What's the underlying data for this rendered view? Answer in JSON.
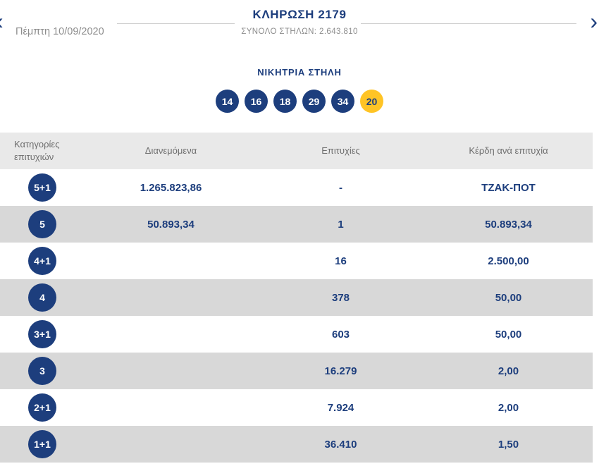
{
  "header": {
    "title": "ΚΛΗΡΩΣΗ 2179",
    "subtitle_label": "ΣΥΝΟΛΟ ΣΤΗΛΩΝ:",
    "subtitle_value": "2.643.810",
    "date": "Πέμπτη 10/09/2020",
    "prev_arrow": "‹",
    "next_arrow": "›"
  },
  "winning": {
    "label": "ΝΙΚΗΤΡΙΑ ΣΤΗΛΗ",
    "numbers": [
      "14",
      "16",
      "18",
      "29",
      "34"
    ],
    "joker": "20"
  },
  "table": {
    "headers": [
      "Κατηγορίες επιτυχιών",
      "Διανεμόμενα",
      "Επιτυχίες",
      "Κέρδη ανά επιτυχία"
    ],
    "rows": [
      {
        "category": "5+1",
        "distributed": "1.265.823,86",
        "winners": "-",
        "prize": "ΤΖΑΚ-ΠΟΤ"
      },
      {
        "category": "5",
        "distributed": "50.893,34",
        "winners": "1",
        "prize": "50.893,34"
      },
      {
        "category": "4+1",
        "distributed": "",
        "winners": "16",
        "prize": "2.500,00"
      },
      {
        "category": "4",
        "distributed": "",
        "winners": "378",
        "prize": "50,00"
      },
      {
        "category": "3+1",
        "distributed": "",
        "winners": "603",
        "prize": "50,00"
      },
      {
        "category": "3",
        "distributed": "",
        "winners": "16.279",
        "prize": "2,00"
      },
      {
        "category": "2+1",
        "distributed": "",
        "winners": "7.924",
        "prize": "2,00"
      },
      {
        "category": "1+1",
        "distributed": "",
        "winners": "36.410",
        "prize": "1,50"
      }
    ]
  },
  "colors": {
    "navy": "#1d3e7d",
    "yellow": "#ffc425",
    "row_gray": "#d8d8d8",
    "head_gray": "#e9e9e9",
    "text_gray": "#8d8d8d"
  }
}
